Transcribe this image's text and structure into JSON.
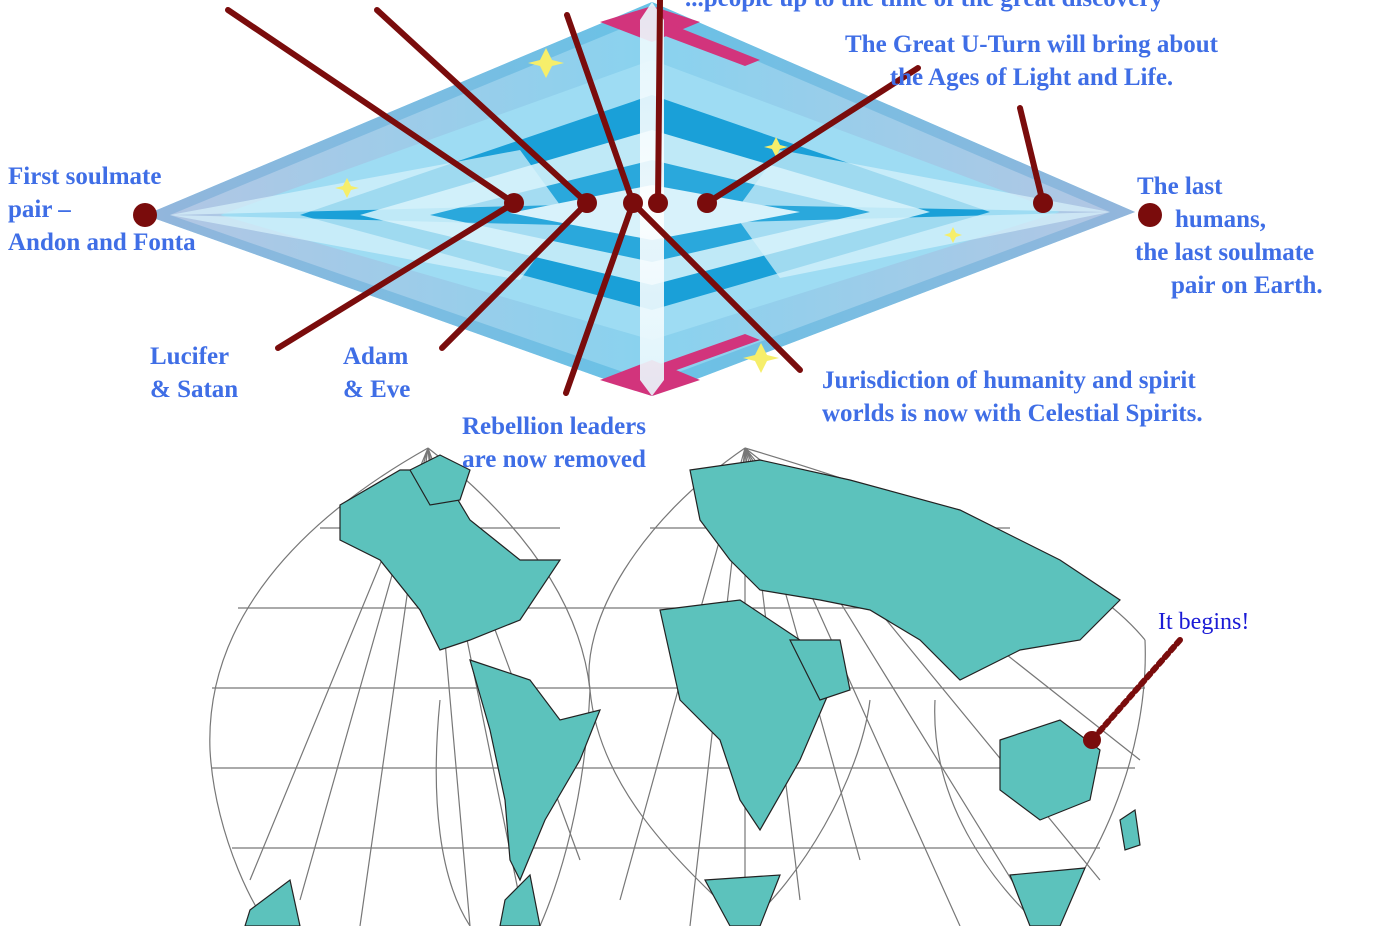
{
  "labels": {
    "top_cut": "...people up to the time of the great discovery",
    "great_uturn": [
      "The Great U-Turn will bring about",
      "the Ages of Light and Life."
    ],
    "first_pair": [
      "First soulmate",
      "pair –",
      "Andon and Fonta"
    ],
    "last_humans": [
      "The last",
      "humans,",
      "the last soulmate",
      "pair on Earth."
    ],
    "lucifer": [
      "Lucifer",
      "& Satan"
    ],
    "adam": [
      "Adam",
      "& Eve"
    ],
    "rebellion": [
      "Rebellion leaders",
      "are now removed"
    ],
    "jurisdiction": [
      "Jurisdiction of humanity and spirit",
      "worlds is now with Celestial Spirits."
    ],
    "it_begins": "It begins!"
  },
  "colors": {
    "label_text": "#3f6ee6",
    "it_begins_text": "#1b1bd6",
    "pointer": "#7a0c0c",
    "land": "#5cc2bc",
    "graticule": "#777777",
    "diamond_pink": "#f3bdd8",
    "diamond_blue": "#1aa0d8",
    "diamond_light": "#bfe9f7",
    "star": "#f6ee6a"
  },
  "icons": [
    "timeline-diamond",
    "world-map-interrupted-projection",
    "star-sparkle",
    "marker-dot"
  ]
}
